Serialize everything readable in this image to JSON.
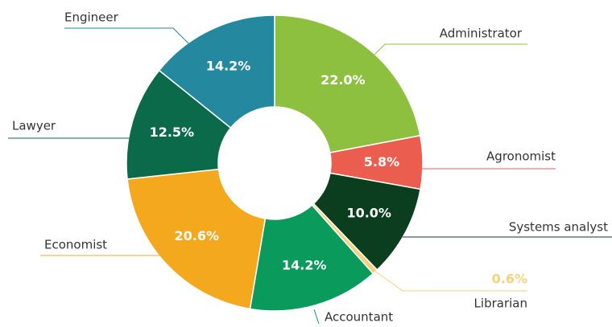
{
  "chart_data": {
    "type": "donut",
    "categories": [
      "Administrator",
      "Agronomist",
      "Systems analyst",
      "Librarian",
      "Accountant",
      "Economist",
      "Lawyer",
      "Engineer"
    ],
    "values": [
      22.0,
      5.8,
      10.0,
      0.6,
      14.2,
      20.6,
      12.5,
      14.2
    ],
    "value_labels": [
      "22.0%",
      "5.8%",
      "10.0%",
      "0.6%",
      "14.2%",
      "20.6%",
      "12.5%",
      "14.2%"
    ],
    "colors": [
      "#8dc03f",
      "#eb5e4f",
      "#0b3d1f",
      "#f5d27a",
      "#0a9a5c",
      "#f4a81d",
      "#0a6a49",
      "#24889e"
    ]
  }
}
